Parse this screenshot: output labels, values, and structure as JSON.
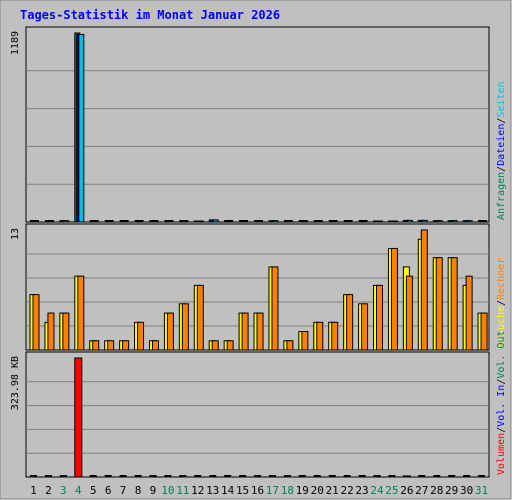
{
  "title": "Tages-Statistik im Monat Januar 2026",
  "colors": {
    "panel": "#c0c0c0",
    "title": "#0000ff",
    "hits": "#00805c",
    "files": "#0000ff",
    "pages": "#00c0e0",
    "visits": "#ffff00",
    "sites": "#ff8000",
    "kbytes": "#ff0000",
    "weekend": "#00805c"
  },
  "chart_data": [
    {
      "type": "bar",
      "name": "requests",
      "ymax_label": "1189",
      "ylim": [
        0,
        1189
      ],
      "categories": [
        "1",
        "2",
        "3",
        "4",
        "5",
        "6",
        "7",
        "8",
        "9",
        "10",
        "11",
        "12",
        "13",
        "14",
        "15",
        "16",
        "17",
        "18",
        "19",
        "20",
        "21",
        "22",
        "23",
        "24",
        "25",
        "26",
        "27",
        "28",
        "29",
        "30",
        "31"
      ],
      "weekend_days": [
        3,
        4,
        10,
        11,
        17,
        18,
        24,
        25,
        31
      ],
      "legend": [
        "Anfragen",
        "/",
        "Dateien",
        "/",
        "Seiten"
      ],
      "series": [
        {
          "name": "Anfragen",
          "values": [
            2,
            2,
            8,
            1189,
            2,
            2,
            2,
            2,
            2,
            2,
            2,
            6,
            13,
            2,
            2,
            2,
            8,
            2,
            2,
            2,
            2,
            2,
            2,
            6,
            6,
            10,
            10,
            8,
            8,
            8,
            2
          ]
        },
        {
          "name": "Dateien",
          "values": [
            2,
            2,
            8,
            1180,
            2,
            2,
            2,
            2,
            2,
            2,
            2,
            6,
            13,
            2,
            2,
            2,
            8,
            2,
            2,
            2,
            2,
            2,
            2,
            6,
            6,
            10,
            10,
            8,
            8,
            8,
            2
          ]
        },
        {
          "name": "Seiten",
          "values": [
            2,
            2,
            8,
            1180,
            2,
            2,
            2,
            2,
            2,
            2,
            2,
            6,
            13,
            2,
            2,
            2,
            8,
            2,
            2,
            2,
            2,
            2,
            2,
            6,
            6,
            10,
            10,
            8,
            8,
            8,
            2
          ]
        }
      ]
    },
    {
      "type": "bar",
      "name": "visits",
      "ymax_label": "13",
      "ylim": [
        0,
        13
      ],
      "legend": [
        "Besuche",
        "/",
        "Rechner"
      ],
      "series": [
        {
          "name": "Besuche",
          "values": [
            6,
            3,
            4,
            8,
            1,
            1,
            1,
            3,
            1,
            4,
            5,
            7,
            1,
            1,
            4,
            4,
            9,
            1,
            2,
            3,
            3,
            6,
            5,
            7,
            11,
            9,
            12,
            10,
            10,
            7,
            4
          ]
        },
        {
          "name": "Rechner",
          "values": [
            6,
            4,
            4,
            8,
            1,
            1,
            1,
            3,
            1,
            4,
            5,
            7,
            1,
            1,
            4,
            4,
            9,
            1,
            2,
            3,
            3,
            6,
            5,
            7,
            11,
            8,
            13,
            10,
            10,
            8,
            4
          ]
        }
      ]
    },
    {
      "type": "bar",
      "name": "volume",
      "ymax_label": "323.98 KB",
      "ylim": [
        0,
        323.98
      ],
      "legend": [
        "Volumen",
        "/",
        "Vol. In",
        "/",
        "Vol. Out"
      ],
      "series": [
        {
          "name": "Volumen",
          "values": [
            1,
            1,
            1,
            323.98,
            1,
            1,
            1,
            1,
            1,
            1,
            1,
            1,
            1,
            1,
            1,
            1,
            1,
            1,
            1,
            1,
            1,
            1,
            1,
            1,
            1,
            3,
            1,
            1,
            1,
            1,
            1
          ]
        }
      ]
    }
  ]
}
